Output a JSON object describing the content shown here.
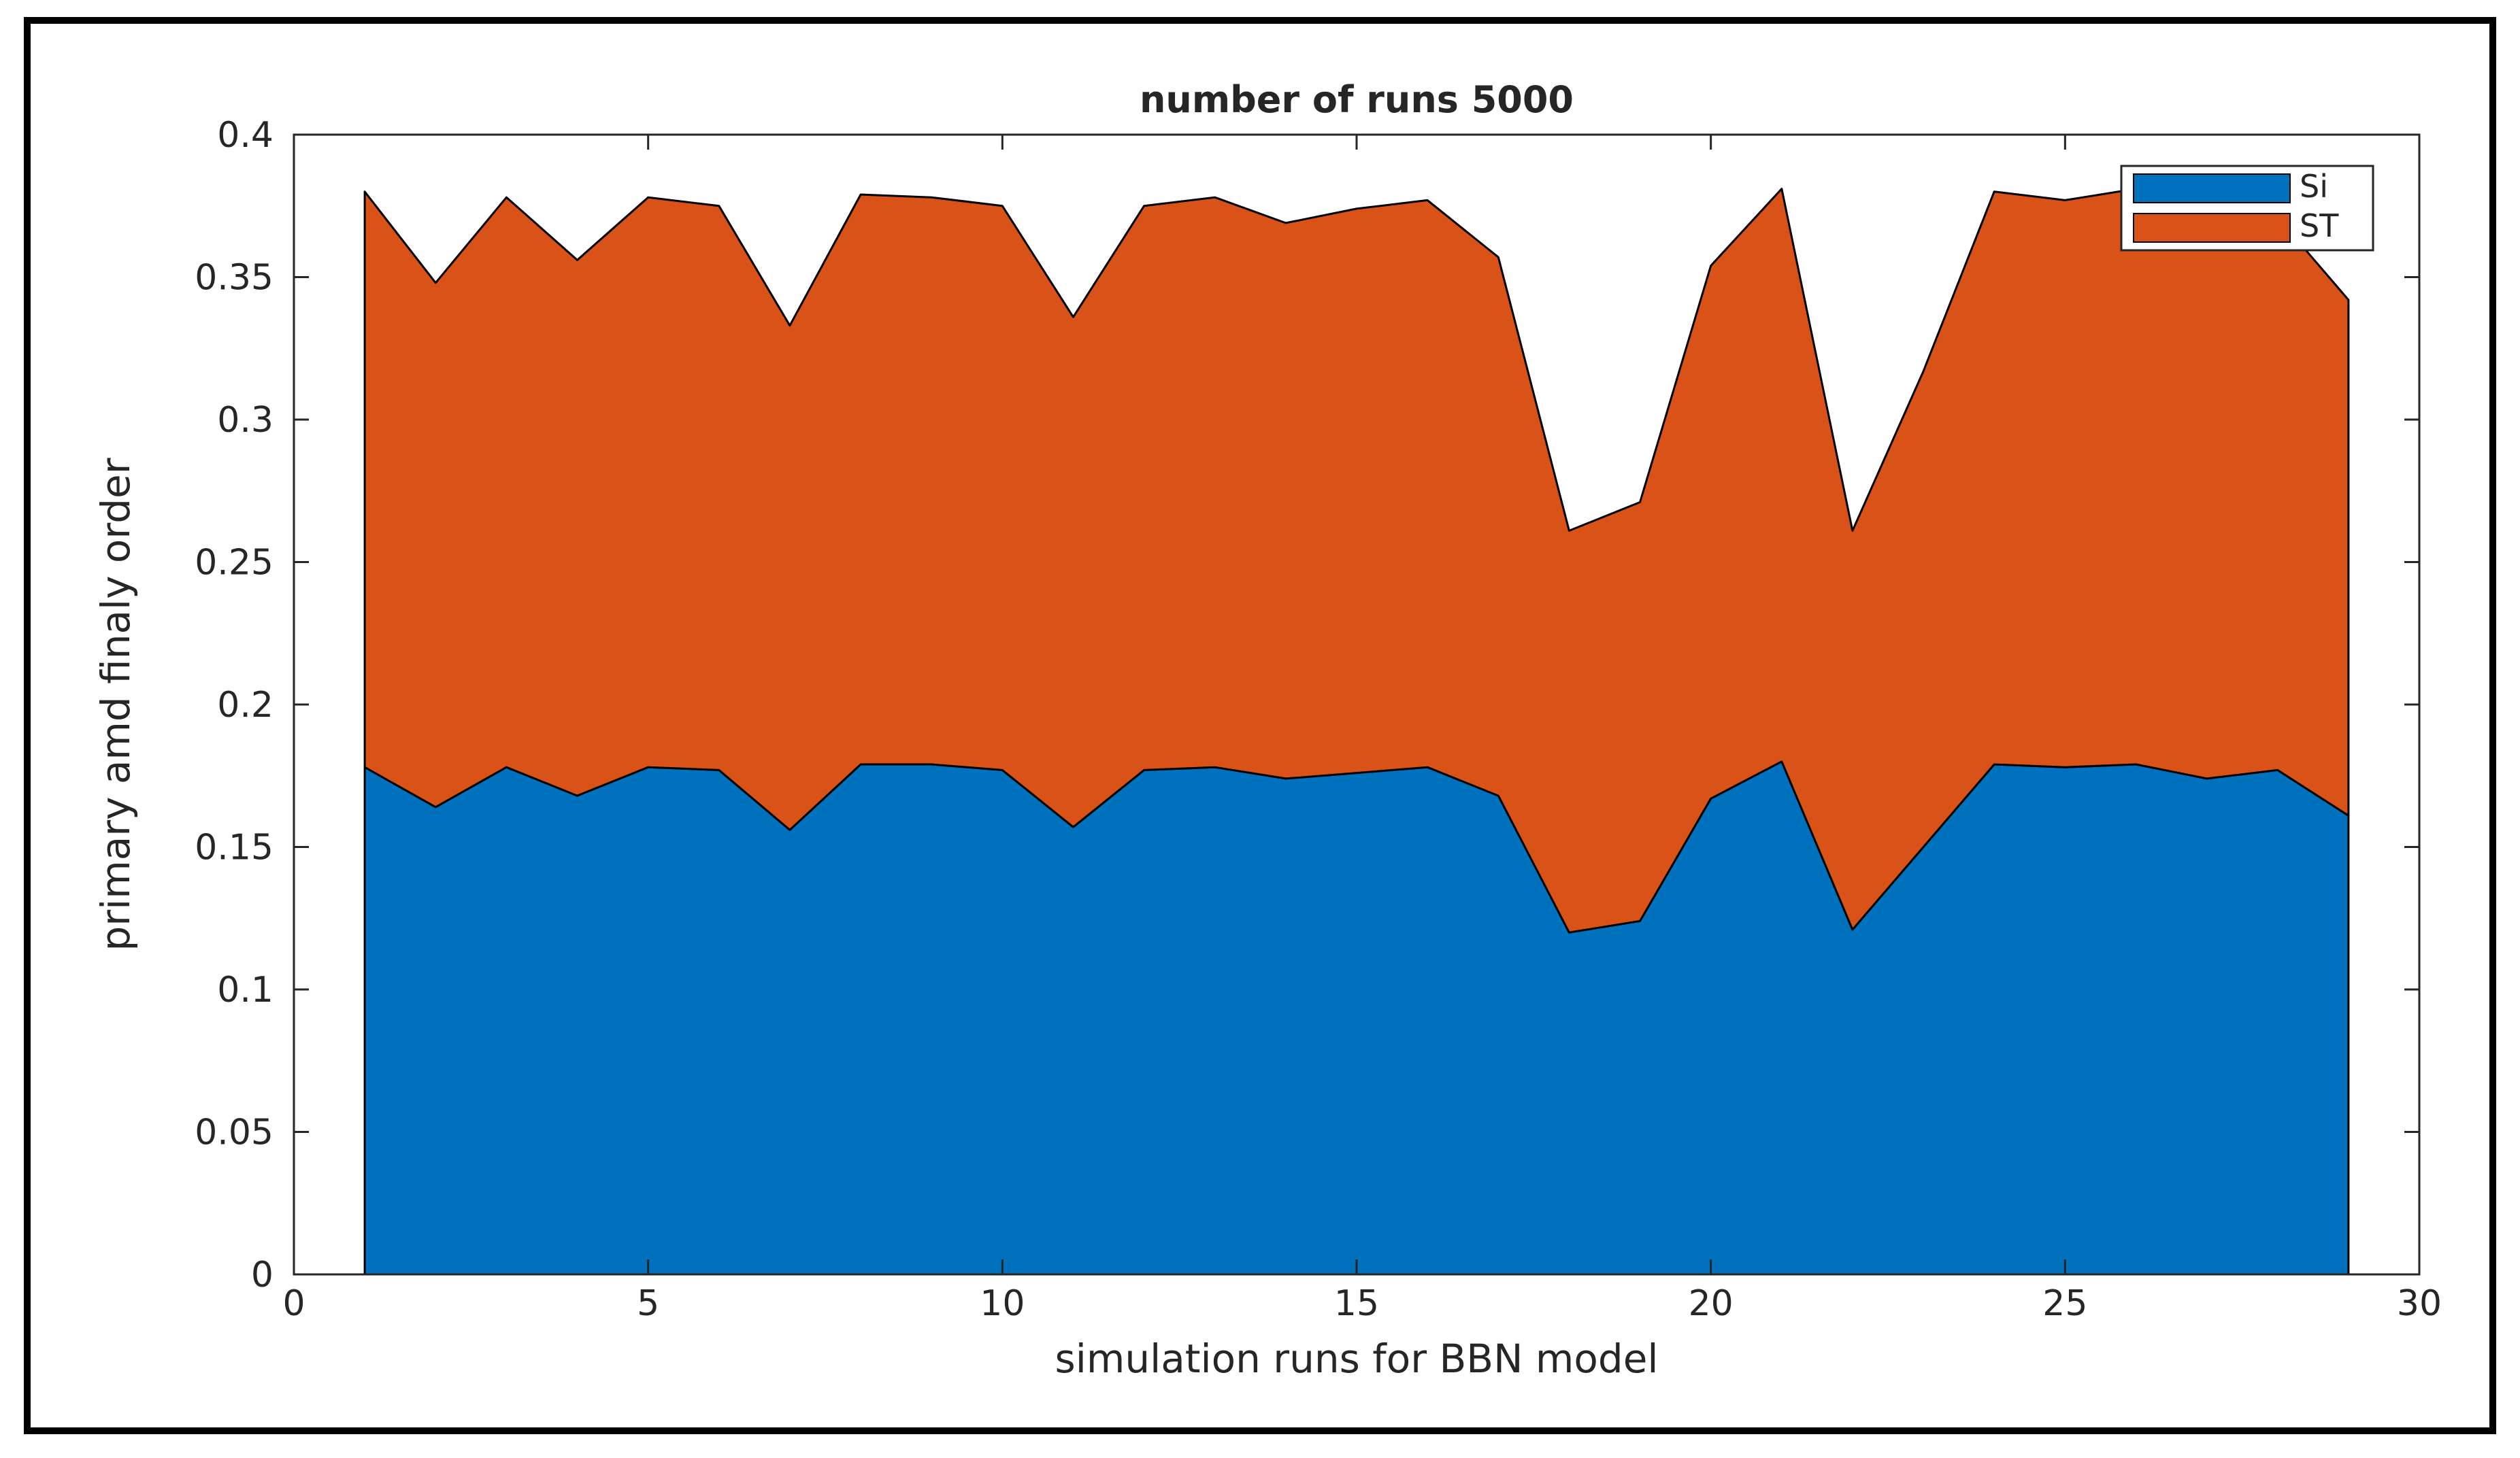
{
  "chart_data": {
    "type": "area",
    "stacked": true,
    "title": "number of runs 5000",
    "xlabel": "simulation runs for BBN model",
    "ylabel": "primary amd finaly order",
    "xlim": [
      0,
      30
    ],
    "ylim": [
      0,
      0.4
    ],
    "xticks": [
      0,
      5,
      10,
      15,
      20,
      25,
      30
    ],
    "xtick_labels": [
      "0",
      "5",
      "10",
      "15",
      "20",
      "25",
      "30"
    ],
    "yticks": [
      0,
      0.05,
      0.1,
      0.15,
      0.2,
      0.25,
      0.3,
      0.35,
      0.4
    ],
    "ytick_labels": [
      "0",
      "0.05",
      "0.1",
      "0.15",
      "0.2",
      "0.25",
      "0.3",
      "0.35",
      "0.4"
    ],
    "grid": false,
    "legend_position": "top-right",
    "x": [
      1,
      2,
      3,
      4,
      5,
      6,
      7,
      8,
      9,
      10,
      11,
      12,
      13,
      14,
      15,
      16,
      17,
      18,
      19,
      20,
      21,
      22,
      23,
      24,
      25,
      26,
      27,
      28,
      29
    ],
    "series": [
      {
        "name": "Si",
        "color": "#0072BD",
        "values": [
          0.178,
          0.164,
          0.178,
          0.168,
          0.178,
          0.177,
          0.156,
          0.179,
          0.179,
          0.177,
          0.157,
          0.177,
          0.178,
          0.174,
          0.176,
          0.178,
          0.168,
          0.12,
          0.124,
          0.167,
          0.18,
          0.121,
          0.15,
          0.179,
          0.178,
          0.179,
          0.174,
          0.177,
          0.161
        ]
      },
      {
        "name": "ST",
        "color": "#D95319",
        "values": [
          0.202,
          0.184,
          0.2,
          0.188,
          0.2,
          0.198,
          0.177,
          0.2,
          0.199,
          0.198,
          0.179,
          0.198,
          0.2,
          0.195,
          0.198,
          0.199,
          0.189,
          0.141,
          0.147,
          0.187,
          0.201,
          0.14,
          0.167,
          0.201,
          0.199,
          0.202,
          0.206,
          0.194,
          0.181
        ]
      }
    ]
  }
}
